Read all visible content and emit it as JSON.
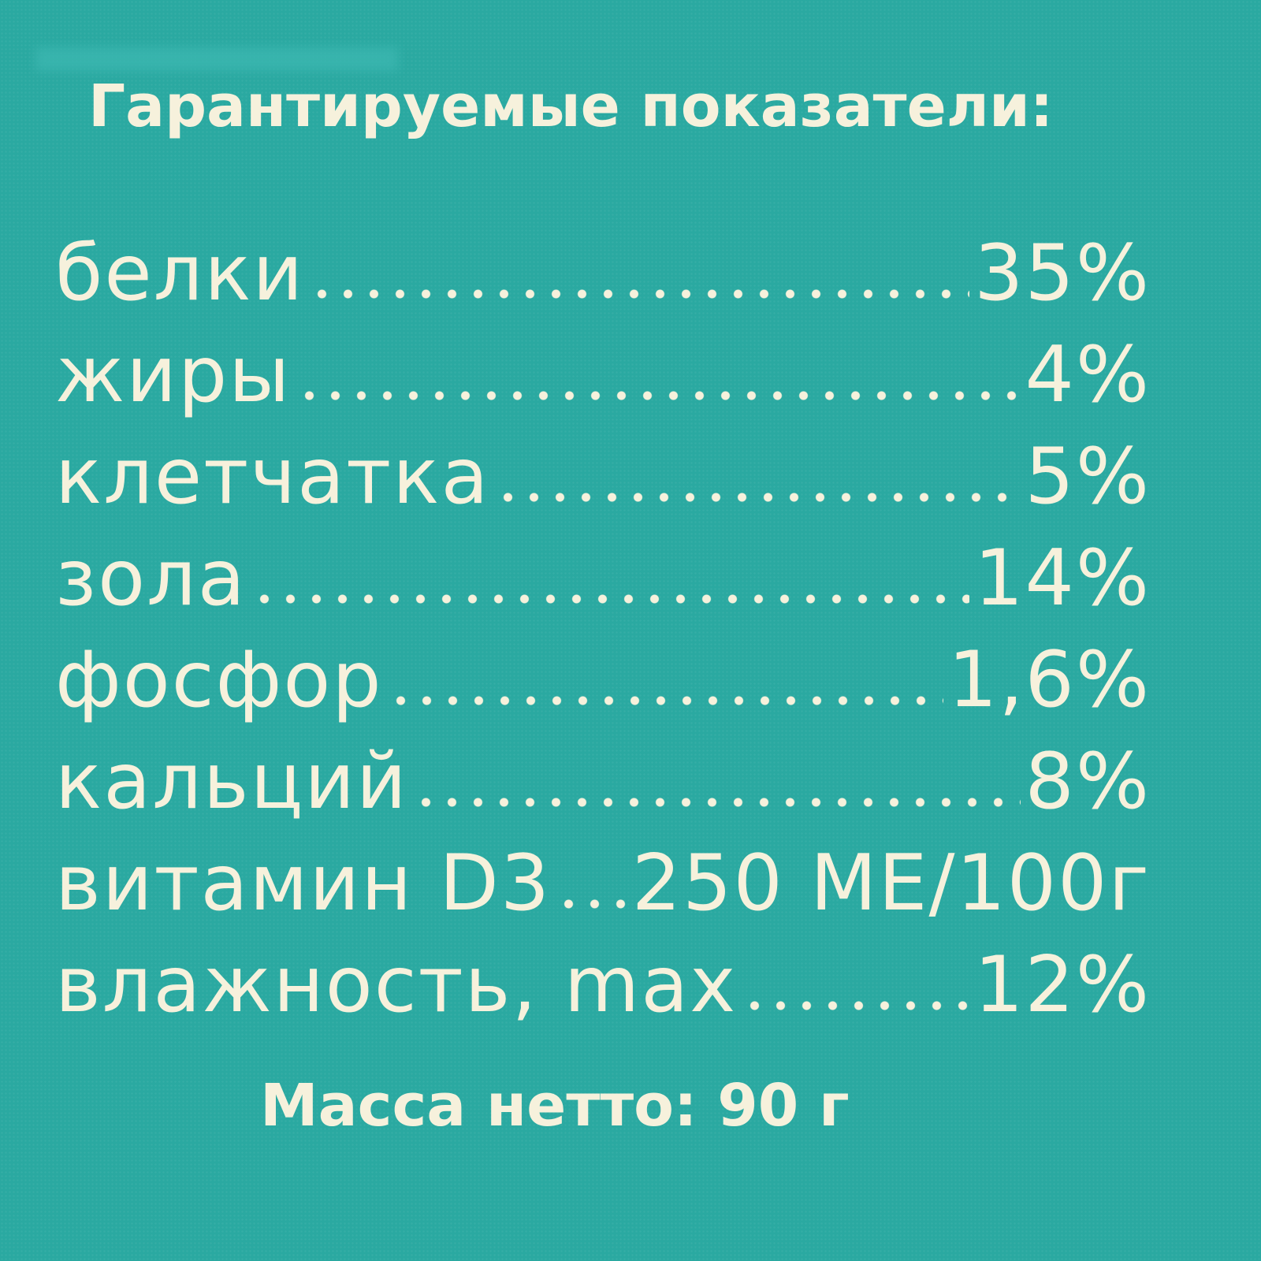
{
  "title": "Гарантируемые показатели:",
  "rows": [
    {
      "label": "белки",
      "value": "35%"
    },
    {
      "label": "жиры",
      "value": "4%"
    },
    {
      "label": "клетчатка",
      "value": "5%"
    },
    {
      "label": "зола",
      "value": "14%"
    },
    {
      "label": "фосфор",
      "value": "1,6%"
    },
    {
      "label": "кальций",
      "value": "8%"
    },
    {
      "label": "витамин D3",
      "value": "250 МЕ/100г"
    },
    {
      "label": "влажность, max",
      "value": "12%"
    }
  ],
  "net_weight": "Масса нетто: 90 г",
  "colors": {
    "background": "#2aa9a1",
    "text": "#f6f1dc"
  }
}
